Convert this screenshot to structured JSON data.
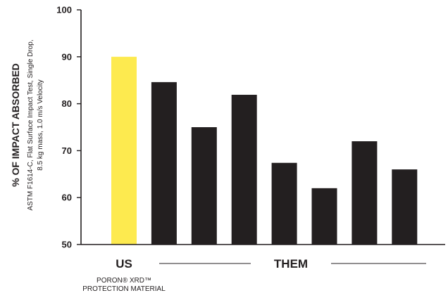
{
  "chart_data": {
    "type": "bar",
    "title": "",
    "ylabel": "% OF IMPACT ABSORBED",
    "ylabel_sub_1": "ASTM F1614-C, Flat Surface Impact Test, Single Drop,",
    "ylabel_sub_2": "8.5 kg mass, 1.0 m/s Velocity",
    "ylim": [
      50,
      100
    ],
    "yticks": [
      50,
      60,
      70,
      80,
      90,
      100
    ],
    "grid": false,
    "series": [
      {
        "name": "US",
        "values": [
          90
        ],
        "color": "#fdea4f"
      },
      {
        "name": "THEM",
        "values": [
          84.6,
          75,
          81.9,
          67.4,
          62,
          72,
          66
        ],
        "color": "#231f20"
      }
    ],
    "group_labels": {
      "us": "US",
      "us_sub_1": "PORON® XRD™",
      "us_sub_2": "PROTECTION MATERIAL",
      "them": "THEM"
    }
  },
  "colors": {
    "axis": "#231f20",
    "us_bar": "#fdea4f",
    "them_bar": "#231f20"
  }
}
